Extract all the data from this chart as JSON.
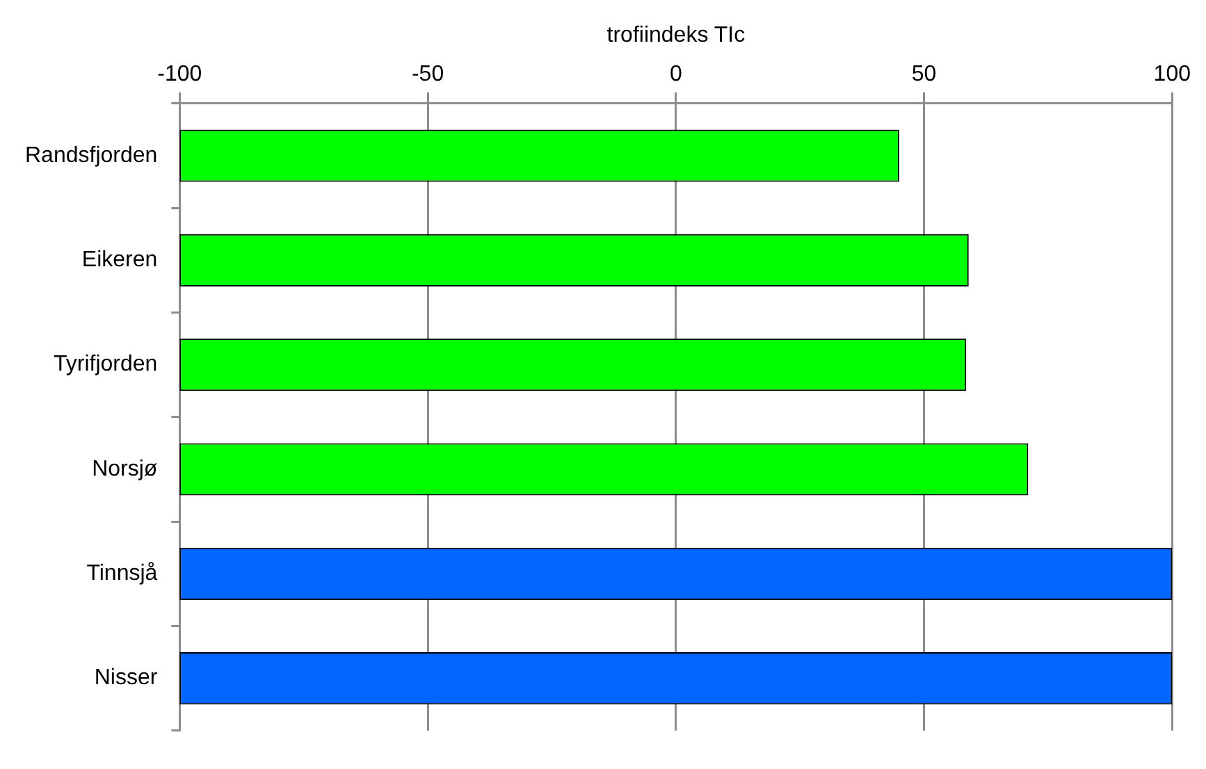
{
  "chart_data": {
    "type": "bar",
    "orientation": "horizontal",
    "xlabel": "trofiindeks TIc",
    "categories": [
      "Randsfjorden",
      "Eikeren",
      "Tyrifjorden",
      "Norsjø",
      "Tinnsjå",
      "Nisser"
    ],
    "values": [
      145,
      159,
      158.5,
      171,
      200,
      200
    ],
    "base": [
      -100,
      -100,
      -100,
      -100,
      -100,
      -100
    ],
    "colors": [
      "#00ff00",
      "#00ff00",
      "#00ff00",
      "#00ff00",
      "#0066ff",
      "#0066ff"
    ],
    "xlim": [
      -100,
      100
    ],
    "xticks": [
      -100,
      -50,
      0,
      50,
      100
    ],
    "grid": "x",
    "legend": false
  }
}
